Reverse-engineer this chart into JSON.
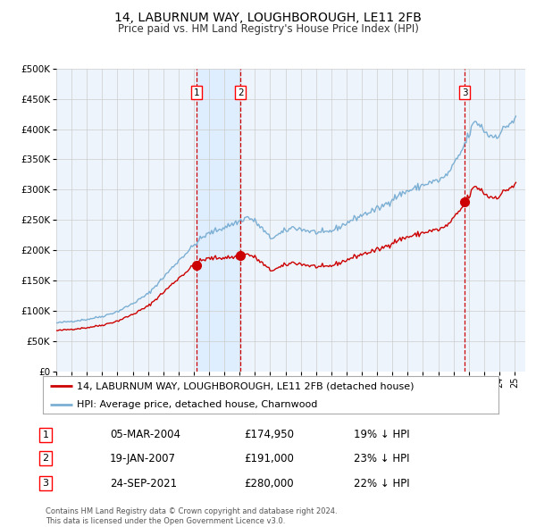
{
  "title": "14, LABURNUM WAY, LOUGHBOROUGH, LE11 2FB",
  "subtitle": "Price paid vs. HM Land Registry's House Price Index (HPI)",
  "sale_prices": [
    174950,
    191000,
    280000
  ],
  "sale_labels": [
    "1",
    "2",
    "3"
  ],
  "sale_notes": [
    "05-MAR-2004",
    "19-JAN-2007",
    "24-SEP-2021"
  ],
  "sale_price_labels": [
    "£174,950",
    "£191,000",
    "£280,000"
  ],
  "sale_pct_labels": [
    "19% ↓ HPI",
    "23% ↓ HPI",
    "22% ↓ HPI"
  ],
  "legend_line1": "14, LABURNUM WAY, LOUGHBOROUGH, LE11 2FB (detached house)",
  "legend_line2": "HPI: Average price, detached house, Charnwood",
  "footer": "Contains HM Land Registry data © Crown copyright and database right 2024.\nThis data is licensed under the Open Government Licence v3.0.",
  "hpi_color": "#7bafd4",
  "price_color": "#cc0000",
  "shade_color": "#ddeeff",
  "dashed_color": "#cc0000",
  "background_color": "#ffffff",
  "plot_bg_color": "#eef4fb",
  "grid_color": "#cccccc",
  "ylim": [
    0,
    500000
  ],
  "xlim_start": 1995.2,
  "xlim_end": 2025.7,
  "sale_times": [
    2004.17,
    2007.05,
    2021.73
  ]
}
